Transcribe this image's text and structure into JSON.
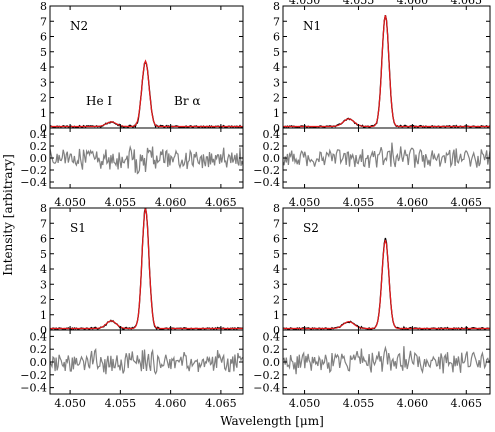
{
  "figure": {
    "ylabel": "Intensity [arbitrary]",
    "xlabel": "Wavelength [μm]"
  },
  "colors": {
    "data": "#000000",
    "fit": "#e41a1c",
    "residual": "#808080"
  },
  "chart_data": {
    "type": "line",
    "x_range": [
      4.048,
      4.0672
    ],
    "x_ticks": [
      "4.050",
      "4.055",
      "4.060",
      "4.065"
    ],
    "main_ylim": [
      0,
      8
    ],
    "main_yticks": [
      "0",
      "1",
      "2",
      "3",
      "4",
      "5",
      "6",
      "7",
      "8"
    ],
    "resid_ylim": [
      -0.5,
      0.5
    ],
    "resid_yticks": [
      "0.4",
      "0.2",
      "0.0",
      "−0.2",
      "−0.4"
    ],
    "lines": {
      "he_i": {
        "label": "He I",
        "center_um": 4.0541
      },
      "br_alpha": {
        "label": "Br α",
        "center_um": 4.0575
      }
    },
    "panels": [
      {
        "name": "N2",
        "br_alpha_peak": 4.3,
        "he_i_peak": 0.3,
        "fwhm_um": 0.00085,
        "continuum": 0.1,
        "show_line_labels": true,
        "show_x_ticks": false
      },
      {
        "name": "N1",
        "br_alpha_peak": 7.3,
        "he_i_peak": 0.5,
        "fwhm_um": 0.00075,
        "continuum": 0.1,
        "show_line_labels": false,
        "show_x_ticks": true
      },
      {
        "name": "S1",
        "br_alpha_peak": 7.9,
        "he_i_peak": 0.5,
        "fwhm_um": 0.0008,
        "continuum": 0.1,
        "show_line_labels": false,
        "show_x_ticks": true
      },
      {
        "name": "S2",
        "br_alpha_peak": 5.8,
        "he_i_peak": 0.45,
        "fwhm_um": 0.00075,
        "continuum": 0.1,
        "show_line_labels": false,
        "show_x_ticks": true
      }
    ]
  }
}
